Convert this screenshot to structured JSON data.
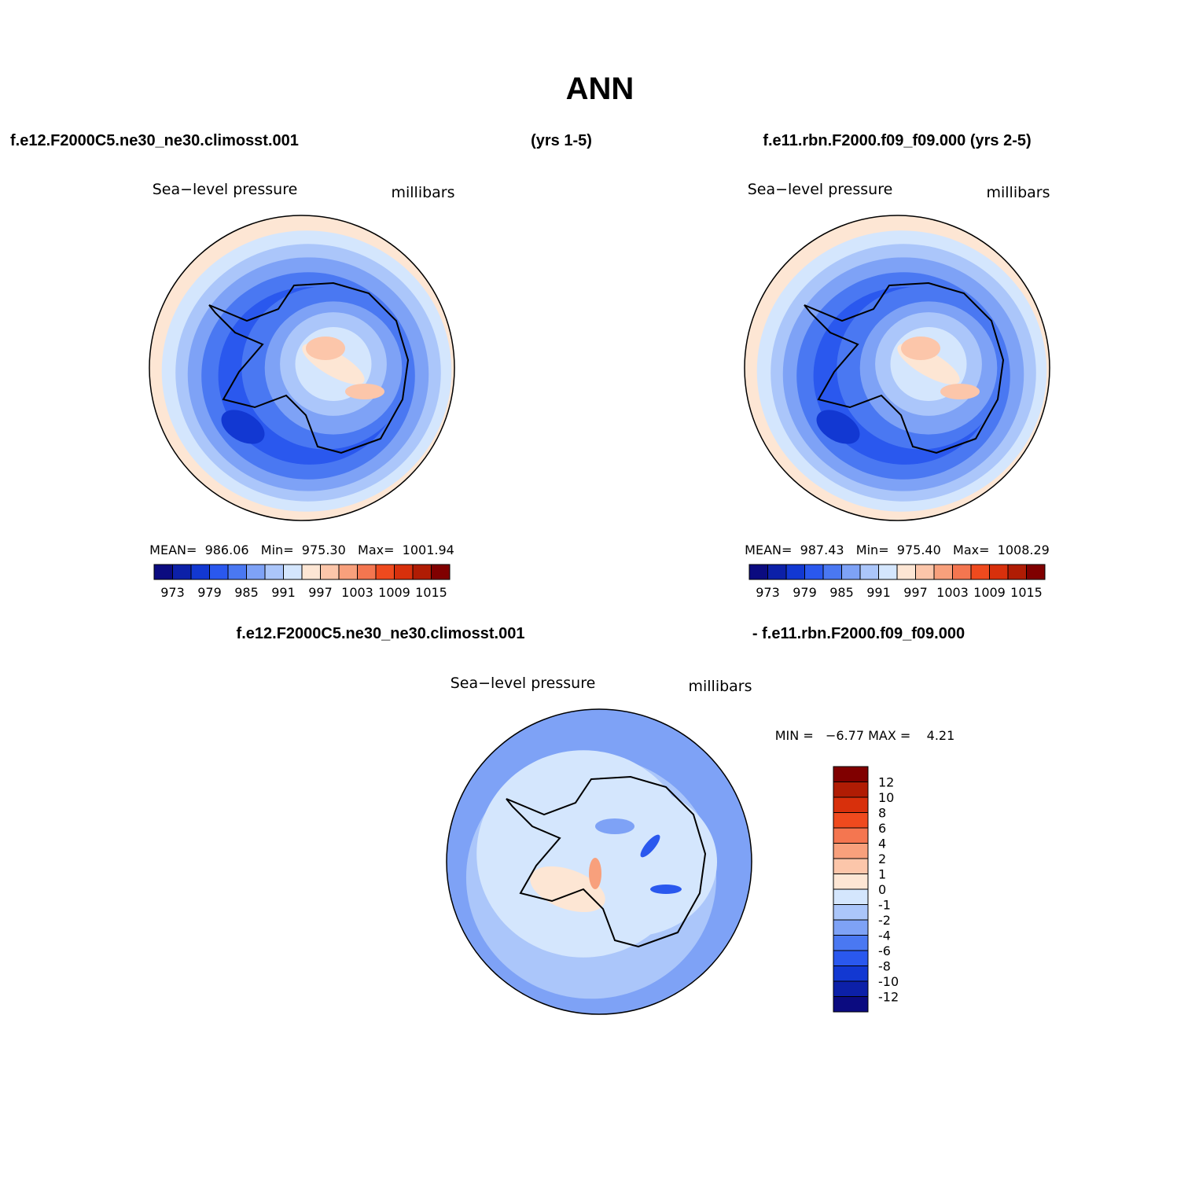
{
  "header": {
    "title": "ANN",
    "left_case": "f.e12.F2000C5.ne30_ne30.climosst.001",
    "left_years": "(yrs 1-5)",
    "right_case": "f.e11.rbn.F2000.f09_f09.000 (yrs 2-5)"
  },
  "colorbar_colors": [
    "#0b0b80",
    "#0c20a8",
    "#1238d2",
    "#2a58ee",
    "#4a78f2",
    "#7ea2f6",
    "#abc6fa",
    "#d4e6fd",
    "#fde6d4",
    "#fcc6aa",
    "#f8a07c",
    "#f47650",
    "#ef4a1e",
    "#d8300c",
    "#b01c04",
    "#800000"
  ],
  "panels": [
    {
      "variable": "Sea−level pressure",
      "units": "millibars",
      "stats": "MEAN=  986.06   Min=  975.30   Max=  1001.94",
      "colorbar_labels": [
        973,
        979,
        985,
        991,
        997,
        1003,
        1009,
        1015
      ]
    },
    {
      "variable": "Sea−level pressure",
      "units": "millibars",
      "stats": "MEAN=  987.43   Min=  975.40   Max=  1008.29",
      "colorbar_labels": [
        973,
        979,
        985,
        991,
        997,
        1003,
        1009,
        1015
      ]
    }
  ],
  "difference": {
    "case_a": "f.e12.F2000C5.ne30_ne30.climosst.001",
    "case_b": "- f.e11.rbn.F2000.f09_f09.000",
    "variable": "Sea−level pressure",
    "units": "millibars",
    "stats": "MIN =   −6.77 MAX =    4.21",
    "colorbar_labels": [
      12,
      10,
      8,
      6,
      4,
      2,
      1,
      0,
      -1,
      -2,
      -4,
      -6,
      -8,
      -10,
      -12
    ]
  }
}
